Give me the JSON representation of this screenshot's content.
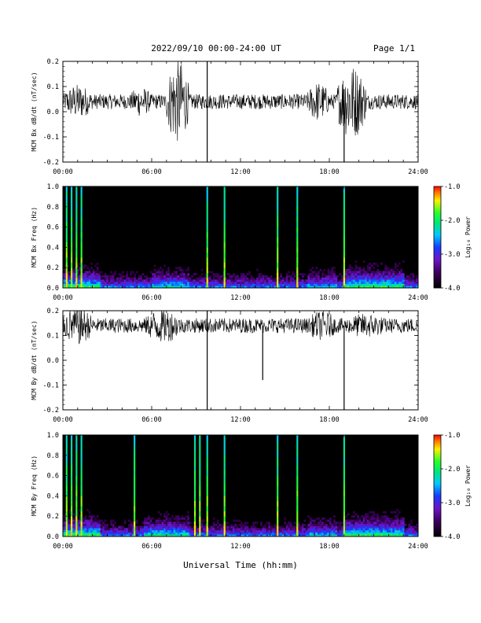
{
  "header": {
    "title": "2022/09/10  00:00-24:00 UT",
    "page": "Page 1/1"
  },
  "footer": {
    "xlabel": "Universal Time (hh:mm)"
  },
  "colorbar": {
    "label": "Log₁₀ Power",
    "ticks": [
      "-1.0",
      "-2.0",
      "-3.0",
      "-4.0"
    ],
    "range": [
      -4.0,
      -1.0
    ]
  },
  "chart_data": [
    {
      "type": "line",
      "ylabel": "MCM Bx dB/dt (nT/sec)",
      "xlim": [
        "00:00",
        "24:00"
      ],
      "ylim": [
        -0.2,
        0.2
      ],
      "xticks": [
        "00:00",
        "06:00",
        "12:00",
        "18:00",
        "24:00"
      ],
      "yticks": [
        "0.2",
        "0.1",
        "0.0",
        "-0.1",
        "-0.2"
      ],
      "baseline": 0.04,
      "bursts": [
        {
          "start": "07:00",
          "end": "08:30",
          "amplitude": 0.17
        },
        {
          "start": "18:30",
          "end": "20:30",
          "amplitude": 0.15
        },
        {
          "start": "16:30",
          "end": "18:00",
          "amplitude": 0.08
        },
        {
          "start": "00:00",
          "end": "02:00",
          "amplitude": 0.07
        },
        {
          "start": "04:30",
          "end": "06:00",
          "amplitude": 0.06
        }
      ],
      "spikes": [
        {
          "time": "09:45",
          "min": -0.2,
          "max": 0.2
        },
        {
          "time": "19:00",
          "min": -0.2,
          "max": 0.09
        }
      ]
    },
    {
      "type": "heatmap",
      "ylabel": "MCM Bx Freq (Hz)",
      "xlim": [
        "00:00",
        "24:00"
      ],
      "ylim": [
        0.0,
        1.0
      ],
      "xticks": [
        "00:00",
        "06:00",
        "12:00",
        "18:00",
        "24:00"
      ],
      "yticks": [
        "1.0",
        "0.8",
        "0.6",
        "0.4",
        "0.2",
        "0.0"
      ],
      "broadband_lines": [
        "00:15",
        "00:35",
        "00:55",
        "01:15",
        "09:45",
        "10:55",
        "14:30",
        "15:50",
        "19:00"
      ],
      "active_intervals": [
        {
          "start": "00:00",
          "end": "02:30",
          "level": 0.8
        },
        {
          "start": "06:00",
          "end": "08:30",
          "level": 0.6
        },
        {
          "start": "16:30",
          "end": "18:30",
          "level": 0.5
        },
        {
          "start": "19:00",
          "end": "23:00",
          "level": 0.85
        }
      ]
    },
    {
      "type": "line",
      "ylabel": "MCM By dB/dt (nT/sec)",
      "xlim": [
        "00:00",
        "24:00"
      ],
      "ylim": [
        -0.2,
        0.2
      ],
      "xticks": [
        "00:00",
        "06:00",
        "12:00",
        "18:00",
        "24:00"
      ],
      "yticks": [
        "0.2",
        "0.1",
        "0.0",
        "-0.1",
        "-0.2"
      ],
      "baseline": 0.14,
      "bursts": [
        {
          "start": "00:00",
          "end": "02:00",
          "amplitude": 0.08
        },
        {
          "start": "05:30",
          "end": "08:00",
          "amplitude": 0.07
        },
        {
          "start": "16:30",
          "end": "18:30",
          "amplitude": 0.06
        },
        {
          "start": "19:00",
          "end": "22:00",
          "amplitude": 0.05
        }
      ],
      "spikes": [
        {
          "time": "09:45",
          "min": -0.2,
          "max": 0.2
        },
        {
          "time": "19:00",
          "min": -0.2,
          "max": 0.14
        },
        {
          "time": "13:30",
          "min": -0.08,
          "max": 0.14
        }
      ]
    },
    {
      "type": "heatmap",
      "ylabel": "MCM By Freq (Hz)",
      "xlim": [
        "00:00",
        "24:00"
      ],
      "ylim": [
        0.0,
        1.0
      ],
      "xticks": [
        "00:00",
        "06:00",
        "12:00",
        "18:00",
        "24:00"
      ],
      "yticks": [
        "1.0",
        "0.8",
        "0.6",
        "0.4",
        "0.2",
        "0.0"
      ],
      "broadband_lines": [
        "00:15",
        "00:35",
        "00:55",
        "01:15",
        "04:50",
        "08:55",
        "09:15",
        "09:45",
        "10:55",
        "14:30",
        "15:50",
        "19:00"
      ],
      "active_intervals": [
        {
          "start": "00:00",
          "end": "02:30",
          "level": 0.85
        },
        {
          "start": "05:30",
          "end": "08:30",
          "level": 0.7
        },
        {
          "start": "16:30",
          "end": "18:30",
          "level": 0.5
        },
        {
          "start": "19:00",
          "end": "23:00",
          "level": 0.8
        }
      ]
    }
  ]
}
